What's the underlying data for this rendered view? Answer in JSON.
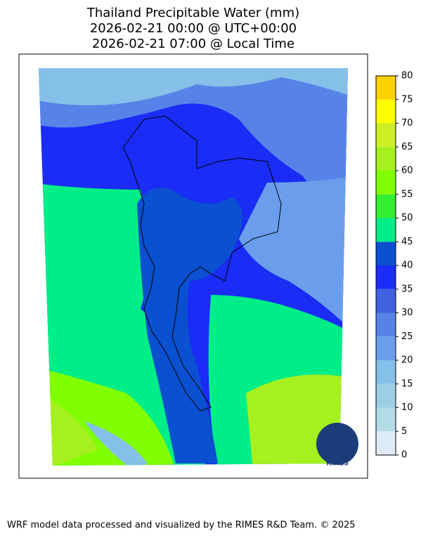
{
  "title_lines": [
    "Thailand Precipitable Water (mm)",
    "2026-02-21 00:00 @ UTC+00:00",
    "2026-02-21 07:00 @ Local Time"
  ],
  "colorbar": {
    "levels": [
      0,
      5,
      10,
      15,
      20,
      25,
      30,
      35,
      40,
      45,
      50,
      55,
      60,
      65,
      70,
      75,
      80
    ],
    "colors": [
      "#deebf7",
      "#b2dbe6",
      "#9ccfe6",
      "#84c0e8",
      "#6a9eec",
      "#5783e8",
      "#4062e0",
      "#1a2cf5",
      "#0a50d0",
      "#00ee88",
      "#33ee33",
      "#80ff00",
      "#a6f020",
      "#ccf024",
      "#ffff00",
      "#ffd000"
    ]
  },
  "logo_text": "RIMES",
  "footer": "WRF model data processed and visualized by the RIMES R&D Team. © 2025"
}
